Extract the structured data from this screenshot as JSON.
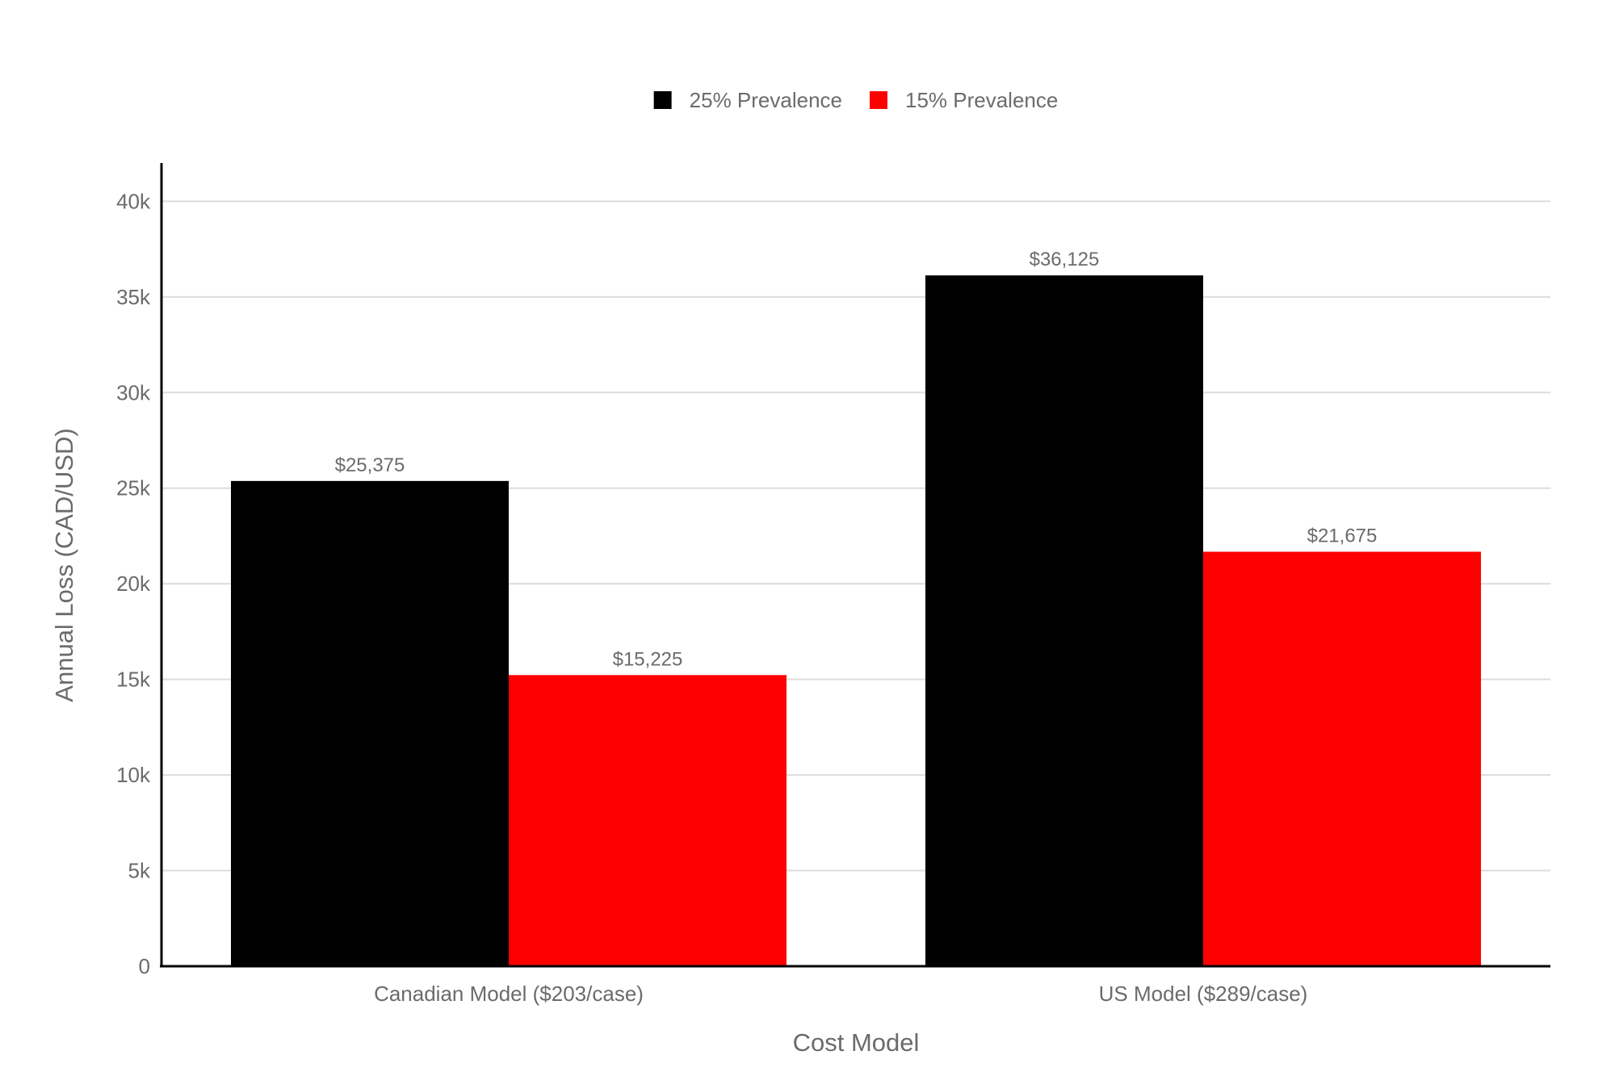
{
  "chart_data": {
    "type": "bar",
    "title": "",
    "xlabel": "Cost Model",
    "ylabel": "Annual Loss (CAD/USD)",
    "categories": [
      "Canadian Model ($203/case)",
      "US Model ($289/case)"
    ],
    "series": [
      {
        "name": "25% Prevalence",
        "color": "#000000",
        "values": [
          25375,
          36125
        ],
        "labels": [
          "$25,375",
          "$36,125"
        ]
      },
      {
        "name": "15% Prevalence",
        "color": "#ff0000",
        "values": [
          15225,
          21675
        ],
        "labels": [
          "$15,225",
          "$21,675"
        ]
      }
    ],
    "ylim": [
      0,
      42000
    ],
    "yticks": [
      0,
      5000,
      10000,
      15000,
      20000,
      25000,
      30000,
      35000,
      40000
    ],
    "ytick_labels": [
      "0",
      "5k",
      "10k",
      "15k",
      "20k",
      "25k",
      "30k",
      "35k",
      "40k"
    ],
    "grid": true,
    "legend_position": "top-center"
  }
}
